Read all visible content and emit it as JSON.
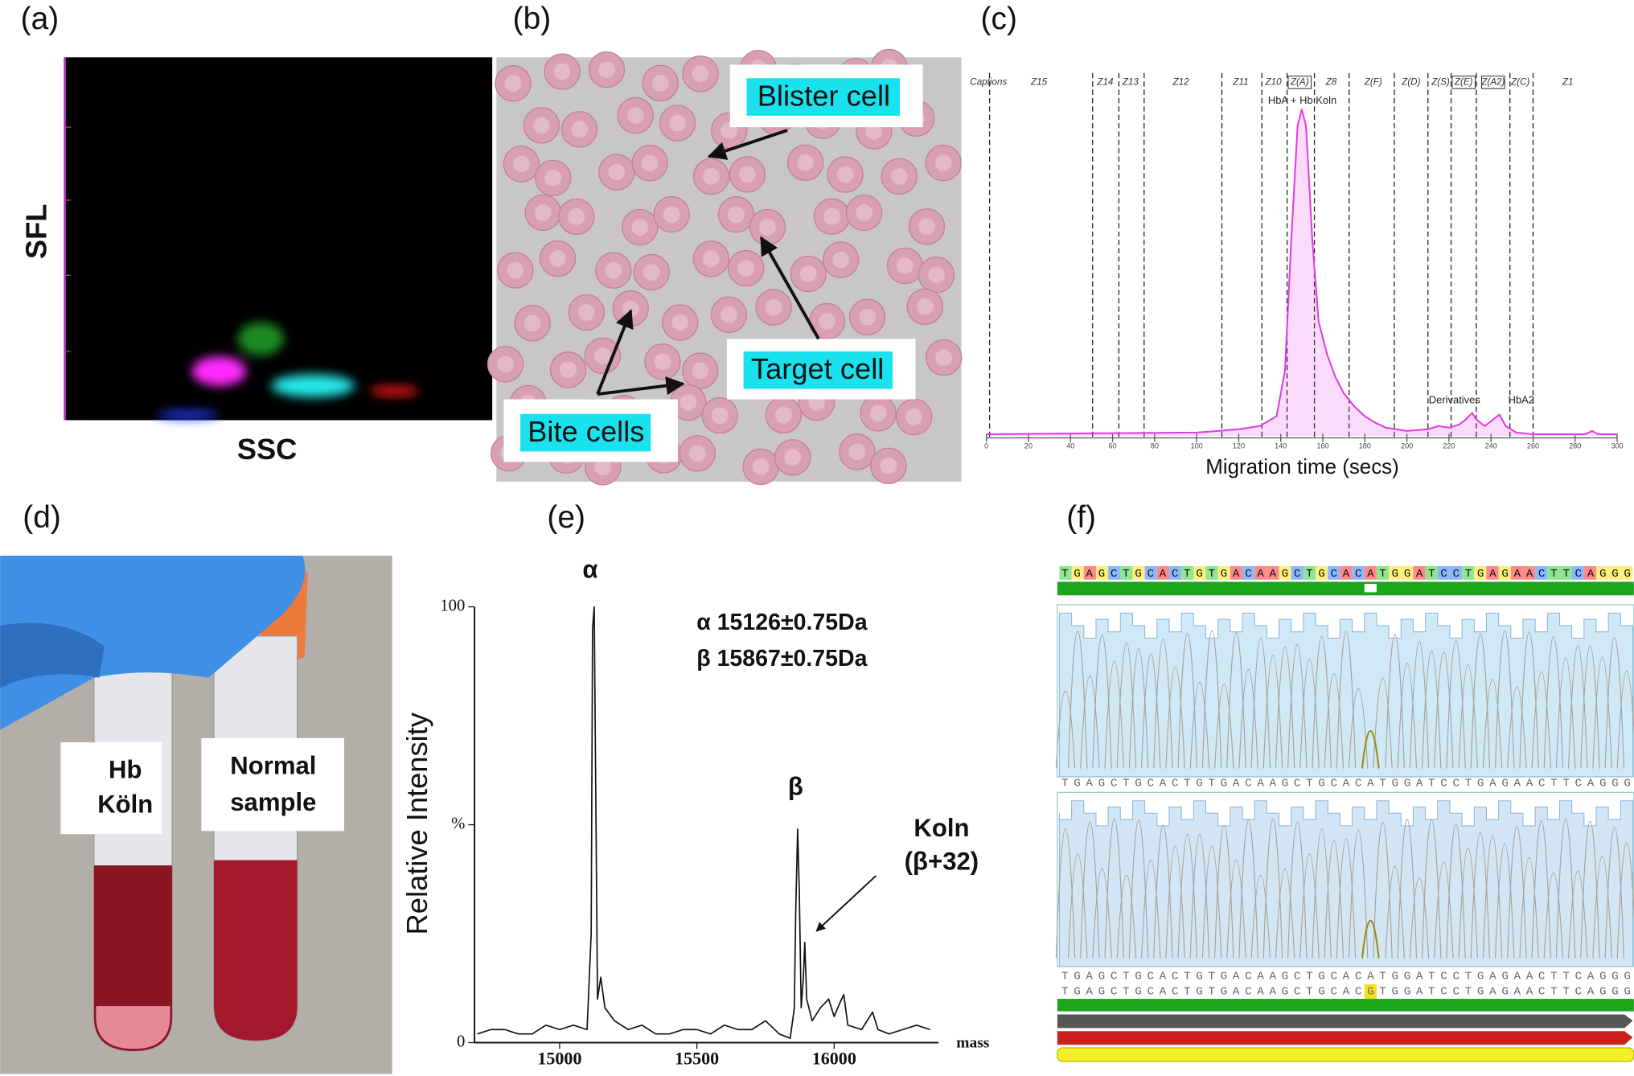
{
  "panel_labels": [
    "(a)",
    "(b)",
    "(c)",
    "(d)",
    "(e)",
    "(f)"
  ],
  "panel_a": {
    "y_label": "SFL",
    "x_label": "SSC"
  },
  "panel_b": {
    "annotations": [
      "Blister cell",
      "Target cell",
      "Bite cells"
    ]
  },
  "panel_d": {
    "tube_labels": [
      [
        "Hb",
        "Köln"
      ],
      [
        "Normal",
        "sample"
      ]
    ]
  },
  "panel_f": {
    "consensus": "TGAGCTGCACTGTGACAAGCTGCACATGGATCCTGAGAACTTCAGGG",
    "reads": [
      "TGAGCTGCACTGTGACAAGCTGCACATGGATCCTGAGAACTTCAGGG",
      "TGAGCTGCACTGTGACAAGCTGCACATGGATCCTGAGAACTTCAGGG",
      "TGAGCTGCACTGTGACAAGCTGCACGTGGATCCTGAGAACTTCAGGG"
    ],
    "variant_index": 25
  },
  "chart_data": [
    {
      "type": "line",
      "x_label": "Migration time (secs)",
      "color": "#e23de2",
      "xlim": [
        0,
        300
      ],
      "xticks": [
        0,
        20,
        40,
        60,
        80,
        100,
        120,
        140,
        160,
        180,
        200,
        220,
        240,
        260,
        280,
        300
      ],
      "ylim": [
        0,
        100
      ],
      "zones": [
        {
          "label": "Captions",
          "center": 1
        },
        {
          "label": "Z15",
          "center": 25
        },
        {
          "label": "Z14",
          "center": 56.5
        },
        {
          "label": "Z13",
          "center": 68.5
        },
        {
          "label": "Z12",
          "center": 92.5
        },
        {
          "label": "Z11",
          "center": 121
        },
        {
          "label": "Z10",
          "center": 136.5
        },
        {
          "label": "Z(A)",
          "center": 149,
          "boxed": true
        },
        {
          "label": "Z8",
          "center": 164
        },
        {
          "label": "Z(F)",
          "center": 184
        },
        {
          "label": "Z(D)",
          "center": 202
        },
        {
          "label": "Z(S)",
          "center": 216
        },
        {
          "label": "Z(E)",
          "center": 227,
          "boxed": true
        },
        {
          "label": "Z(A2)",
          "center": 241,
          "boxed": true
        },
        {
          "label": "Z(C)",
          "center": 254
        },
        {
          "label": "Z1",
          "center": 276.5
        }
      ],
      "boundaries": [
        1.5,
        50.5,
        63,
        75,
        112,
        131,
        143,
        156,
        172.5,
        194,
        210,
        221,
        233,
        249,
        260
      ],
      "peak_labels": [
        "HbA + Hb Koln",
        "Derivatives",
        "HbA2"
      ],
      "x": [
        0,
        100,
        120,
        130,
        138,
        142,
        145,
        148,
        150,
        152,
        155,
        158,
        162,
        166,
        170,
        175,
        180,
        185,
        190,
        200,
        210,
        215,
        220,
        225,
        228,
        231,
        233,
        237,
        241,
        244,
        247,
        252,
        260,
        285,
        288,
        291,
        300
      ],
      "values": [
        0.5,
        1,
        2,
        3,
        6,
        20,
        60,
        95,
        100,
        95,
        60,
        35,
        25,
        18,
        13,
        9,
        6,
        4,
        2.5,
        1.5,
        2,
        3,
        2.5,
        3.5,
        5,
        7,
        5,
        3,
        5,
        6.5,
        3,
        1,
        0.5,
        0.5,
        1.5,
        0.5,
        0.5
      ]
    },
    {
      "type": "line",
      "y_label": "Relative Intensity",
      "x_label": "mass",
      "color": "#111",
      "xlim": [
        14690,
        16380
      ],
      "xticks": [
        15000,
        15500,
        16000
      ],
      "ylim": [
        0,
        100
      ],
      "yticks": [
        0,
        {
          "value": 50,
          "label": "%"
        },
        100
      ],
      "peak_names": [
        "α",
        "β"
      ],
      "annotations": [
        "α 15126±0.75Da",
        "β 15867±0.75Da"
      ],
      "koln_label": [
        "Koln",
        "(β+32)"
      ],
      "x": [
        14700,
        14750,
        14800,
        14850,
        14900,
        14950,
        15000,
        15050,
        15100,
        15115,
        15120,
        15126,
        15132,
        15138,
        15150,
        15165,
        15200,
        15250,
        15300,
        15350,
        15400,
        15450,
        15500,
        15550,
        15600,
        15650,
        15700,
        15750,
        15800,
        15840,
        15855,
        15860,
        15867,
        15873,
        15880,
        15888,
        15893,
        15900,
        15920,
        15950,
        15980,
        16000,
        16020,
        16035,
        16050,
        16100,
        16140,
        16160,
        16200,
        16250,
        16300,
        16350
      ],
      "values": [
        2,
        3,
        3,
        2,
        2,
        4,
        3,
        4,
        3,
        25,
        95,
        100,
        55,
        10,
        15,
        8,
        5,
        3,
        4,
        2,
        2,
        3,
        3,
        2,
        4,
        3,
        3,
        5,
        2,
        1,
        8,
        30,
        49,
        35,
        8,
        15,
        23,
        10,
        5,
        8,
        10,
        6,
        9,
        11,
        4,
        3,
        7,
        3,
        2,
        3,
        4,
        3
      ]
    }
  ]
}
